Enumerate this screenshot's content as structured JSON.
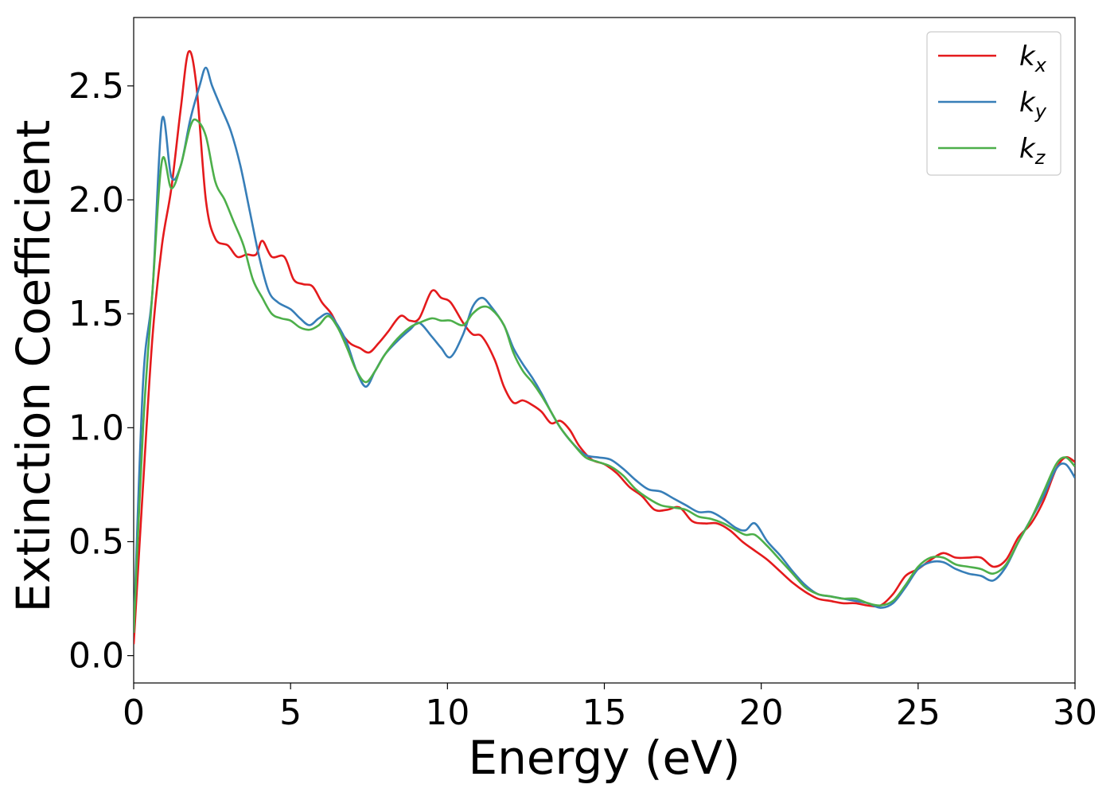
{
  "chart_data": {
    "type": "line",
    "xlabel": "Energy (eV)",
    "ylabel": "Extinction Coefficient",
    "xlim": [
      0,
      30
    ],
    "ylim": [
      -0.12,
      2.8
    ],
    "xticks": [
      "0",
      "5",
      "10",
      "15",
      "20",
      "25",
      "30"
    ],
    "yticks": [
      "0.0",
      "0.5",
      "1.0",
      "1.5",
      "2.0",
      "2.5"
    ],
    "grid": false,
    "legend_position": "top-right",
    "series": [
      {
        "name": "k",
        "subscript": "x",
        "color": "#e41a1c",
        "x": [
          0,
          0.3,
          0.6,
          0.9,
          1.2,
          1.5,
          1.75,
          2.0,
          2.3,
          2.6,
          3.0,
          3.3,
          3.6,
          3.9,
          4.1,
          4.4,
          4.8,
          5.1,
          5.4,
          5.7,
          6.0,
          6.3,
          6.6,
          6.9,
          7.2,
          7.5,
          7.8,
          8.1,
          8.5,
          8.8,
          9.1,
          9.5,
          9.8,
          10.1,
          10.5,
          10.8,
          11.1,
          11.5,
          11.8,
          12.1,
          12.4,
          12.7,
          13.0,
          13.3,
          13.6,
          13.9,
          14.2,
          14.6,
          15.0,
          15.4,
          15.8,
          16.2,
          16.6,
          17.0,
          17.4,
          17.8,
          18.2,
          18.6,
          19.0,
          19.4,
          19.8,
          20.2,
          20.6,
          21.0,
          21.4,
          21.8,
          22.2,
          22.6,
          23.0,
          23.4,
          23.8,
          24.2,
          24.6,
          25.0,
          25.4,
          25.8,
          26.2,
          26.6,
          27.0,
          27.4,
          27.8,
          28.2,
          28.6,
          29.0,
          29.4,
          29.7,
          30.0
        ],
        "y": [
          0.05,
          0.75,
          1.4,
          1.8,
          2.05,
          2.4,
          2.65,
          2.5,
          2.0,
          1.83,
          1.8,
          1.75,
          1.76,
          1.76,
          1.82,
          1.75,
          1.75,
          1.65,
          1.63,
          1.62,
          1.55,
          1.5,
          1.42,
          1.37,
          1.35,
          1.33,
          1.37,
          1.42,
          1.49,
          1.47,
          1.48,
          1.6,
          1.57,
          1.55,
          1.46,
          1.41,
          1.4,
          1.3,
          1.18,
          1.11,
          1.12,
          1.1,
          1.07,
          1.02,
          1.03,
          0.99,
          0.92,
          0.86,
          0.84,
          0.8,
          0.74,
          0.7,
          0.64,
          0.64,
          0.65,
          0.59,
          0.58,
          0.58,
          0.55,
          0.5,
          0.46,
          0.42,
          0.37,
          0.32,
          0.28,
          0.25,
          0.24,
          0.23,
          0.23,
          0.22,
          0.22,
          0.27,
          0.35,
          0.38,
          0.42,
          0.45,
          0.43,
          0.43,
          0.43,
          0.39,
          0.42,
          0.52,
          0.58,
          0.68,
          0.82,
          0.87,
          0.85
        ]
      },
      {
        "name": "k",
        "subscript": "y",
        "color": "#377eb8",
        "x": [
          0,
          0.3,
          0.6,
          0.9,
          1.2,
          1.5,
          1.8,
          2.1,
          2.3,
          2.5,
          2.8,
          3.1,
          3.4,
          3.7,
          4.0,
          4.3,
          4.6,
          5.0,
          5.3,
          5.6,
          5.9,
          6.2,
          6.5,
          6.8,
          7.1,
          7.4,
          7.7,
          8.0,
          8.4,
          8.8,
          9.1,
          9.5,
          9.8,
          10.1,
          10.5,
          10.8,
          11.1,
          11.4,
          11.8,
          12.1,
          12.4,
          12.7,
          13.0,
          13.3,
          13.6,
          14.0,
          14.4,
          14.8,
          15.2,
          15.6,
          16.0,
          16.4,
          16.8,
          17.2,
          17.6,
          18.0,
          18.4,
          18.8,
          19.2,
          19.5,
          19.8,
          20.2,
          20.6,
          21.0,
          21.4,
          21.8,
          22.2,
          22.6,
          23.0,
          23.4,
          23.8,
          24.2,
          24.6,
          25.0,
          25.4,
          25.8,
          26.2,
          26.6,
          27.0,
          27.4,
          27.8,
          28.2,
          28.6,
          29.0,
          29.4,
          29.7,
          30.0
        ],
        "y": [
          0.1,
          1.2,
          1.6,
          2.35,
          2.1,
          2.15,
          2.35,
          2.5,
          2.58,
          2.5,
          2.4,
          2.3,
          2.15,
          1.95,
          1.75,
          1.6,
          1.55,
          1.52,
          1.48,
          1.45,
          1.48,
          1.5,
          1.45,
          1.37,
          1.25,
          1.18,
          1.25,
          1.32,
          1.38,
          1.43,
          1.46,
          1.4,
          1.35,
          1.31,
          1.41,
          1.53,
          1.57,
          1.53,
          1.45,
          1.35,
          1.28,
          1.22,
          1.15,
          1.07,
          1.0,
          0.93,
          0.88,
          0.87,
          0.86,
          0.82,
          0.77,
          0.73,
          0.72,
          0.69,
          0.66,
          0.63,
          0.63,
          0.6,
          0.56,
          0.55,
          0.58,
          0.5,
          0.44,
          0.37,
          0.31,
          0.27,
          0.26,
          0.25,
          0.24,
          0.23,
          0.21,
          0.23,
          0.3,
          0.38,
          0.41,
          0.41,
          0.38,
          0.36,
          0.35,
          0.33,
          0.39,
          0.5,
          0.6,
          0.7,
          0.82,
          0.84,
          0.78
        ]
      },
      {
        "name": "k",
        "subscript": "z",
        "color": "#4daf4a",
        "x": [
          0,
          0.3,
          0.6,
          0.9,
          1.2,
          1.5,
          1.8,
          2.0,
          2.3,
          2.6,
          2.9,
          3.2,
          3.5,
          3.8,
          4.1,
          4.4,
          4.7,
          5.0,
          5.3,
          5.6,
          5.9,
          6.2,
          6.5,
          6.8,
          7.1,
          7.4,
          7.7,
          8.0,
          8.4,
          8.8,
          9.1,
          9.5,
          9.8,
          10.1,
          10.5,
          10.8,
          11.1,
          11.4,
          11.8,
          12.1,
          12.4,
          12.7,
          13.0,
          13.3,
          13.6,
          14.0,
          14.4,
          14.8,
          15.2,
          15.6,
          16.0,
          16.4,
          16.8,
          17.2,
          17.6,
          18.0,
          18.4,
          18.8,
          19.2,
          19.5,
          19.8,
          20.2,
          20.6,
          21.0,
          21.4,
          21.8,
          22.2,
          22.6,
          23.0,
          23.4,
          23.8,
          24.2,
          24.6,
          25.0,
          25.4,
          25.8,
          26.2,
          26.6,
          27.0,
          27.4,
          27.8,
          28.2,
          28.6,
          29.0,
          29.4,
          29.7,
          30.0
        ],
        "y": [
          0.1,
          1.0,
          1.6,
          2.17,
          2.05,
          2.15,
          2.32,
          2.35,
          2.28,
          2.08,
          2.0,
          1.9,
          1.8,
          1.65,
          1.57,
          1.5,
          1.48,
          1.47,
          1.44,
          1.43,
          1.45,
          1.49,
          1.44,
          1.35,
          1.25,
          1.2,
          1.25,
          1.32,
          1.39,
          1.44,
          1.46,
          1.48,
          1.47,
          1.47,
          1.45,
          1.5,
          1.53,
          1.52,
          1.45,
          1.33,
          1.25,
          1.2,
          1.14,
          1.07,
          1.0,
          0.93,
          0.87,
          0.85,
          0.83,
          0.79,
          0.73,
          0.69,
          0.66,
          0.65,
          0.64,
          0.61,
          0.6,
          0.58,
          0.55,
          0.53,
          0.53,
          0.48,
          0.42,
          0.36,
          0.3,
          0.27,
          0.26,
          0.25,
          0.25,
          0.23,
          0.22,
          0.24,
          0.31,
          0.39,
          0.43,
          0.43,
          0.4,
          0.39,
          0.38,
          0.36,
          0.4,
          0.5,
          0.6,
          0.72,
          0.84,
          0.87,
          0.83
        ]
      }
    ]
  }
}
